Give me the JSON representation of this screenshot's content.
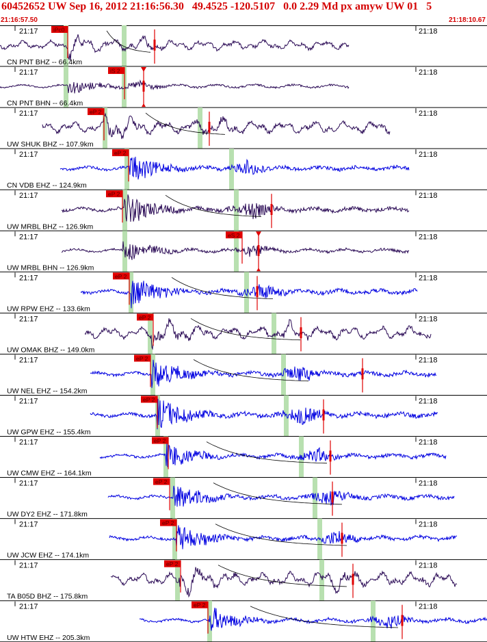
{
  "header": {
    "title": "60452652 UW Sep 16, 2012 21:16:56.30   49.4525 -120.5107   0.0 2.29 Md px amyw UW 01   5",
    "time_start": "21:16:57.50",
    "time_end": "21:18:10.67"
  },
  "tick_left": "21:17",
  "tick_right": "21:18",
  "colors": {
    "header_text": "#d40000",
    "trace_dark": "#2a0a55",
    "trace_blue": "#0000e0",
    "pick_red": "#e00000",
    "window_green": "#b8e0b0",
    "grid": "#000000"
  },
  "traces": [
    {
      "label": "CN PNT BHZ -- 66.4km",
      "pick": "iPc0",
      "pick_x": 75,
      "color": "dark",
      "start": 0,
      "end": 510,
      "burst": 100,
      "amp": 16,
      "green": [
        96,
        181
      ],
      "curve": true,
      "red_tick": 226,
      "freq": "low"
    },
    {
      "label": "CN PNT BHN -- 66.4km",
      "pick": "iS 2",
      "pick_x": 158,
      "color": "dark",
      "start": 0,
      "end": 510,
      "burst": 100,
      "amp": 12,
      "green": [
        96,
        181
      ],
      "curve": false,
      "red_tick": 210,
      "freq": "high",
      "marker": 210
    },
    {
      "label": "UW SHUK BHZ -- 107.9km",
      "pick": "eP 2",
      "pick_x": 128,
      "color": "dark",
      "start": 62,
      "end": 570,
      "burst": 152,
      "amp": 20,
      "green": [
        153,
        292
      ],
      "curve": true,
      "red_tick": 306,
      "freq": "low"
    },
    {
      "label": "CN VDB EHZ -- 124.9km",
      "pick": "eP 2",
      "pick_x": 164,
      "color": "blue",
      "start": 88,
      "end": 598,
      "burst": 190,
      "amp": 22,
      "green": [
        185,
        338
      ],
      "curve": false,
      "red_tick": null,
      "freq": "high"
    },
    {
      "label": "UW MRBL BHZ -- 126.9km",
      "pick": "eP 2",
      "pick_x": 155,
      "color": "dark",
      "start": 90,
      "end": 598,
      "burst": 182,
      "amp": 24,
      "green": [
        182,
        345
      ],
      "curve": true,
      "red_tick": 397,
      "freq": "high"
    },
    {
      "label": "UW MRBL BHN -- 126.9km",
      "pick": "eS 2",
      "pick_x": 330,
      "color": "dark",
      "start": 90,
      "end": 598,
      "burst": 180,
      "amp": 16,
      "green": [
        182,
        345
      ],
      "curve": false,
      "red_tick": 378,
      "freq": "high",
      "marker": 378
    },
    {
      "label": "UW RPW EHZ -- 133.6km",
      "pick": "eP 2",
      "pick_x": 165,
      "color": "blue",
      "start": 118,
      "end": 610,
      "burst": 192,
      "amp": 24,
      "green": [
        191,
        360
      ],
      "curve": true,
      "red_tick": 376,
      "freq": "high"
    },
    {
      "label": "UW OMAK BHZ -- 149.0km",
      "pick": "eP 2",
      "pick_x": 200,
      "color": "dark",
      "start": 124,
      "end": 630,
      "burst": 222,
      "amp": 20,
      "green": [
        219,
        400
      ],
      "curve": true,
      "red_tick": 440,
      "freq": "low"
    },
    {
      "label": "UW NEL EHZ -- 154.2km",
      "pick": "eP 2",
      "pick_x": 196,
      "color": "blue",
      "start": 132,
      "end": 638,
      "burst": 222,
      "amp": 24,
      "green": [
        223,
        414
      ],
      "curve": true,
      "red_tick": 530,
      "freq": "high"
    },
    {
      "label": "UW GPW EHZ -- 155.4km",
      "pick": "eP 2",
      "pick_x": 206,
      "color": "blue",
      "start": 132,
      "end": 640,
      "burst": 230,
      "amp": 26,
      "green": [
        230,
        418
      ],
      "curve": false,
      "red_tick": 473,
      "freq": "high"
    },
    {
      "label": "UW CMW EHZ -- 164.1km",
      "pick": "eP 2",
      "pick_x": 222,
      "color": "blue",
      "start": 146,
      "end": 652,
      "burst": 243,
      "amp": 20,
      "green": [
        242,
        440
      ],
      "curve": true,
      "red_tick": 483,
      "freq": "high"
    },
    {
      "label": "UW DY2 EHZ -- 171.8km",
      "pick": "eP 2",
      "pick_x": 224,
      "color": "blue",
      "start": 158,
      "end": 664,
      "burst": 254,
      "amp": 22,
      "green": [
        252,
        460
      ],
      "curve": true,
      "red_tick": 486,
      "freq": "high"
    },
    {
      "label": "UW JCW EHZ -- 174.1km",
      "pick": "eP 2",
      "pick_x": 234,
      "color": "blue",
      "start": 160,
      "end": 668,
      "burst": 258,
      "amp": 22,
      "green": [
        255,
        467
      ],
      "curve": true,
      "red_tick": 500,
      "freq": "high"
    },
    {
      "label": "TA B05D BHZ -- 175.8km",
      "pick": "eP 2",
      "pick_x": 240,
      "color": "dark",
      "start": 162,
      "end": 668,
      "burst": 262,
      "amp": 22,
      "green": [
        259,
        470
      ],
      "curve": true,
      "red_tick": 516,
      "freq": "low"
    },
    {
      "label": "UW HTW EHZ -- 205.3km",
      "pick": "eP 2",
      "pick_x": 280,
      "color": "blue",
      "start": 204,
      "end": 712,
      "burst": 306,
      "amp": 20,
      "green": [
        306,
        545
      ],
      "curve": true,
      "red_tick": 588,
      "freq": "high"
    }
  ]
}
